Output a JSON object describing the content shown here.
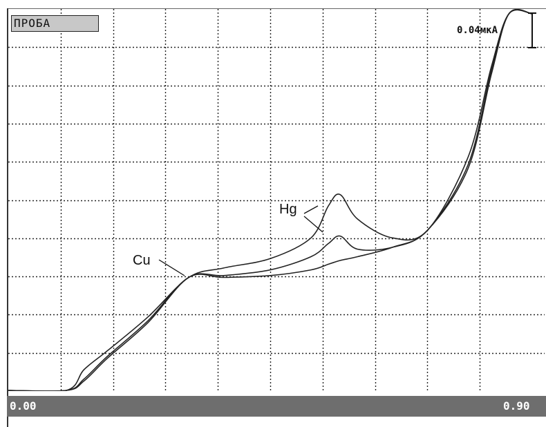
{
  "sample_label": "ПРОБА",
  "scale_label": "0.04мкА",
  "x_axis": {
    "min_label": "0.00",
    "max_label": "0.90"
  },
  "annotations": {
    "cu": "Cu",
    "hg": "Hg"
  },
  "colors": {
    "curve": "#222222",
    "grid": "#222222",
    "xbar": "#6e6e6e",
    "label_bg": "#c8c8c8"
  },
  "chart_data": {
    "type": "line",
    "title": "",
    "xlabel": "",
    "ylabel": "",
    "xlim": [
      0.0,
      0.9
    ],
    "ylim": [
      0,
      10
    ],
    "grid": true,
    "series": [
      {
        "x": [
          0.0,
          0.1,
          0.13,
          0.17,
          0.24,
          0.31,
          0.37,
          0.45,
          0.52,
          0.55,
          0.57,
          0.6,
          0.66,
          0.72,
          0.79,
          0.83,
          0.86,
          0.9
        ],
        "values": [
          0.0,
          0.0,
          0.55,
          1.05,
          1.95,
          3.0,
          3.25,
          3.5,
          4.05,
          4.9,
          5.2,
          4.55,
          4.05,
          4.25,
          6.2,
          8.6,
          10.0,
          10.0
        ]
      },
      {
        "x": [
          0.0,
          0.1,
          0.13,
          0.17,
          0.24,
          0.31,
          0.37,
          0.45,
          0.52,
          0.55,
          0.57,
          0.6,
          0.66,
          0.72,
          0.79,
          0.83,
          0.86,
          0.9
        ],
        "values": [
          0.0,
          0.0,
          0.25,
          0.85,
          1.8,
          3.0,
          3.05,
          3.2,
          3.55,
          3.9,
          4.1,
          3.75,
          3.8,
          4.25,
          5.9,
          8.4,
          10.0,
          10.0
        ]
      },
      {
        "x": [
          0.0,
          0.1,
          0.13,
          0.17,
          0.24,
          0.31,
          0.37,
          0.45,
          0.52,
          0.55,
          0.57,
          0.6,
          0.66,
          0.72,
          0.79,
          0.83,
          0.86,
          0.9
        ],
        "values": [
          0.0,
          0.0,
          0.3,
          0.9,
          1.85,
          3.0,
          3.0,
          3.05,
          3.2,
          3.35,
          3.45,
          3.55,
          3.8,
          4.25,
          6.0,
          8.5,
          10.0,
          10.0
        ]
      }
    ]
  }
}
